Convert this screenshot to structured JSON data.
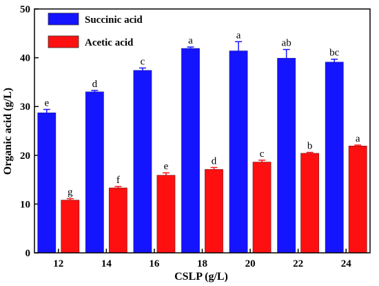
{
  "chart_data": {
    "type": "bar",
    "xlabel": "CSLP (g/L)",
    "ylabel": "Organic acid (g/L)",
    "ylim": [
      0,
      50
    ],
    "yticks": [
      "0",
      "10",
      "20",
      "30",
      "40",
      "50"
    ],
    "categories": [
      "12",
      "14",
      "16",
      "18",
      "20",
      "22",
      "24"
    ],
    "legend_position": "top-left",
    "series": [
      {
        "name": "Succinic acid",
        "color": "#1414ff",
        "values": [
          28.7,
          33.0,
          37.4,
          41.9,
          41.4,
          39.9,
          39.1
        ],
        "errors": [
          0.7,
          0.3,
          0.5,
          0.3,
          1.9,
          1.8,
          0.6
        ],
        "labels": [
          "e",
          "d",
          "c",
          "a",
          "a",
          "ab",
          "bc"
        ]
      },
      {
        "name": "Acetic acid",
        "color": "#ff1010",
        "values": [
          10.8,
          13.3,
          15.9,
          17.1,
          18.6,
          20.4,
          21.9
        ],
        "errors": [
          0.3,
          0.3,
          0.5,
          0.4,
          0.4,
          0.2,
          0.2
        ],
        "labels": [
          "g",
          "f",
          "e",
          "d",
          "c",
          "b",
          "a"
        ]
      }
    ]
  }
}
